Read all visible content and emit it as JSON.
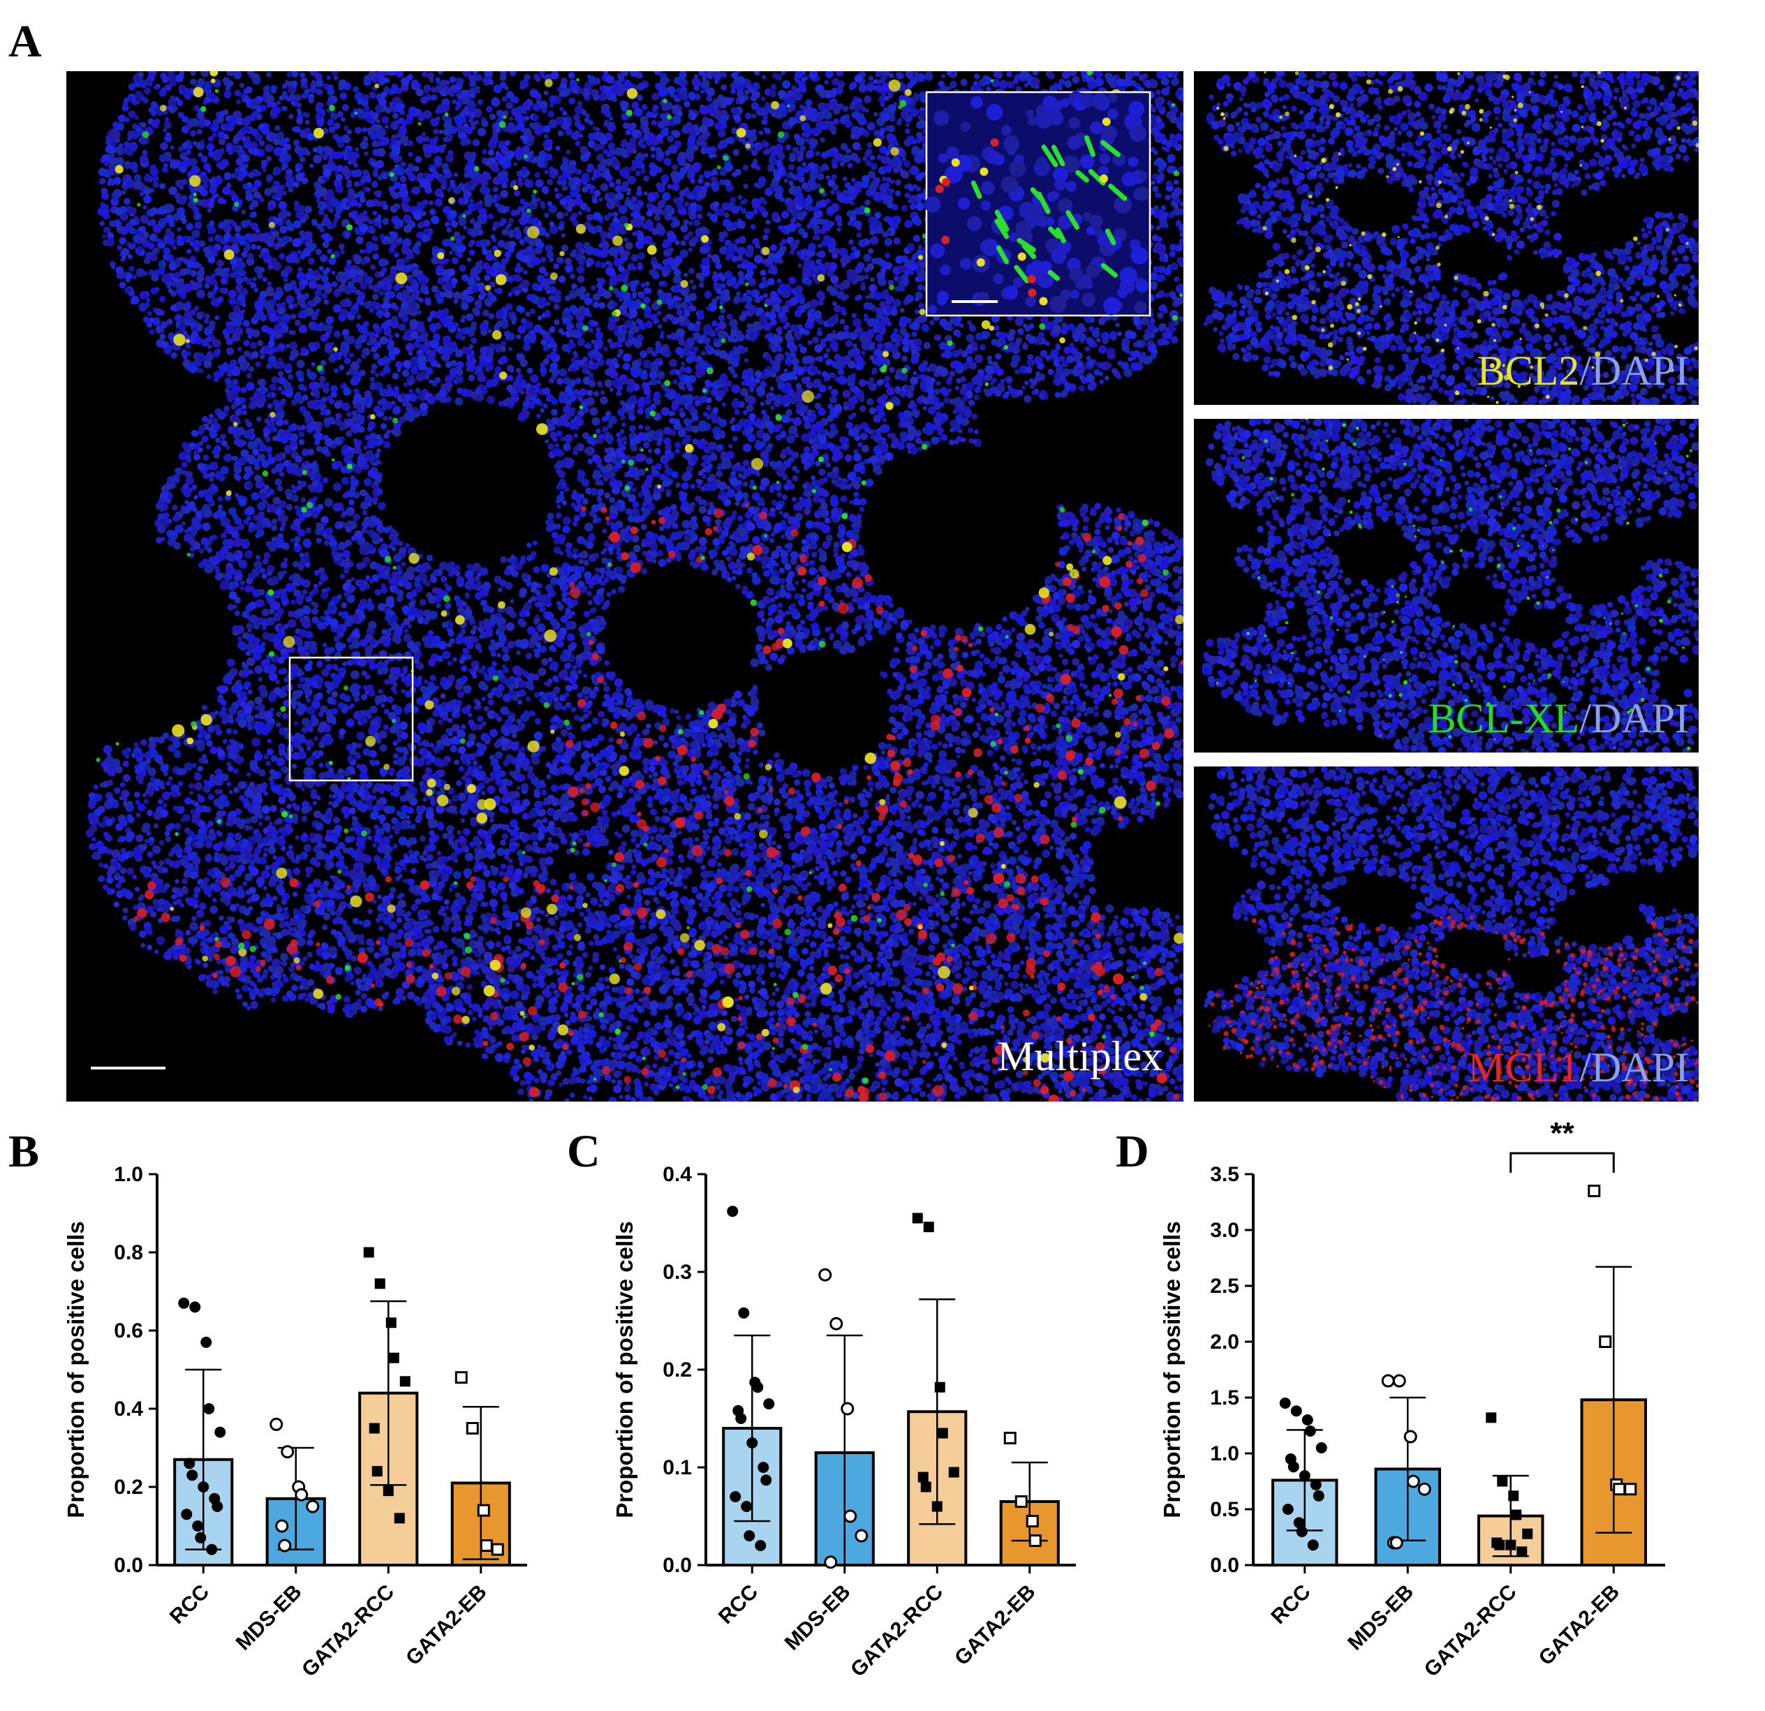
{
  "panels": {
    "A": "A",
    "B": "B",
    "C": "C",
    "D": "D"
  },
  "panel_a": {
    "multiplex_label": "Multiplex",
    "stains": [
      {
        "marker": "BCL2",
        "sep": "/",
        "dapi": "DAPI",
        "marker_color": "#e6e61e"
      },
      {
        "marker": "BCL-XL",
        "sep": "/",
        "dapi": "DAPI",
        "marker_color": "#22dd22"
      },
      {
        "marker": "MCL1",
        "sep": "/",
        "dapi": "DAPI",
        "marker_color": "#ee2222"
      }
    ],
    "colors": {
      "dapi_label": "#8aa0ee",
      "nuclei": "#1a1ad2",
      "background": "#000000"
    }
  },
  "chart_data": [
    {
      "panel": "B",
      "type": "bar",
      "categories": [
        "RCC",
        "MDS-EB",
        "GATA2-RCC",
        "GATA2-EB"
      ],
      "ylabel": "Proportion of positive cells",
      "ylim": [
        0,
        1.0
      ],
      "yticks": [
        "0.0",
        "0.2",
        "0.4",
        "0.6",
        "0.8",
        "1.0"
      ],
      "ytick_values": [
        0,
        0.2,
        0.4,
        0.6,
        0.8,
        1.0
      ],
      "means": [
        0.27,
        0.17,
        0.44,
        0.21
      ],
      "sd": [
        0.23,
        0.13,
        0.235,
        0.195
      ],
      "bar_colors": [
        "#a9d4f0",
        "#4ea8e0",
        "#f5cd98",
        "#e8962e"
      ],
      "marker_style": [
        "filled-circle",
        "open-circle",
        "filled-square",
        "open-square"
      ],
      "points": [
        [
          0.67,
          0.66,
          0.57,
          0.4,
          0.34,
          0.26,
          0.23,
          0.2,
          0.17,
          0.15,
          0.13,
          0.1,
          0.07,
          0.04
        ],
        [
          0.36,
          0.29,
          0.2,
          0.18,
          0.15,
          0.1,
          0.05
        ],
        [
          0.8,
          0.72,
          0.62,
          0.53,
          0.47,
          0.35,
          0.24,
          0.19,
          0.12
        ],
        [
          0.48,
          0.35,
          0.14,
          0.05,
          0.04
        ]
      ]
    },
    {
      "panel": "C",
      "type": "bar",
      "categories": [
        "RCC",
        "MDS-EB",
        "GATA2-RCC",
        "GATA2-EB"
      ],
      "ylabel": "Proportion of positive cells",
      "ylim": [
        0,
        0.4
      ],
      "yticks": [
        "0.0",
        "0.1",
        "0.2",
        "0.3",
        "0.4"
      ],
      "ytick_values": [
        0,
        0.1,
        0.2,
        0.3,
        0.4
      ],
      "means": [
        0.14,
        0.115,
        0.157,
        0.065
      ],
      "sd": [
        0.095,
        0.12,
        0.115,
        0.04
      ],
      "bar_colors": [
        "#a9d4f0",
        "#4ea8e0",
        "#f5cd98",
        "#e8962e"
      ],
      "marker_style": [
        "filled-circle",
        "open-circle",
        "filled-square",
        "open-square"
      ],
      "points": [
        [
          0.362,
          0.258,
          0.187,
          0.182,
          0.165,
          0.158,
          0.15,
          0.125,
          0.1,
          0.087,
          0.07,
          0.06,
          0.03,
          0.02
        ],
        [
          0.297,
          0.247,
          0.16,
          0.05,
          0.03,
          0.003
        ],
        [
          0.355,
          0.346,
          0.182,
          0.135,
          0.095,
          0.09,
          0.08,
          0.06
        ],
        [
          0.13,
          0.065,
          0.045,
          0.025
        ]
      ]
    },
    {
      "panel": "D",
      "type": "bar",
      "categories": [
        "RCC",
        "MDS-EB",
        "GATA2-RCC",
        "GATA2-EB"
      ],
      "ylabel": "Proportion of positive cells",
      "ylim": [
        0,
        3.5
      ],
      "yticks": [
        "0.0",
        "0.5",
        "1.0",
        "1.5",
        "2.0",
        "2.5",
        "3.0",
        "3.5"
      ],
      "ytick_values": [
        0,
        0.5,
        1.0,
        1.5,
        2.0,
        2.5,
        3.0,
        3.5
      ],
      "means": [
        0.76,
        0.86,
        0.44,
        1.48
      ],
      "sd": [
        0.45,
        0.64,
        0.36,
        1.19
      ],
      "bar_colors": [
        "#a9d4f0",
        "#4ea8e0",
        "#f5cd98",
        "#e8962e"
      ],
      "marker_style": [
        "filled-circle",
        "open-circle",
        "filled-square",
        "open-square"
      ],
      "points": [
        [
          1.45,
          1.38,
          1.3,
          1.2,
          1.05,
          0.95,
          0.88,
          0.8,
          0.72,
          0.62,
          0.5,
          0.38,
          0.3,
          0.18
        ],
        [
          1.65,
          1.65,
          1.15,
          0.75,
          0.68,
          0.2,
          0.2
        ],
        [
          1.32,
          0.75,
          0.62,
          0.45,
          0.28,
          0.2,
          0.18,
          0.18,
          0.12
        ],
        [
          3.35,
          2.0,
          0.72,
          0.68,
          0.68
        ]
      ],
      "significance": {
        "label": "**",
        "from": 2,
        "to": 3
      }
    }
  ]
}
